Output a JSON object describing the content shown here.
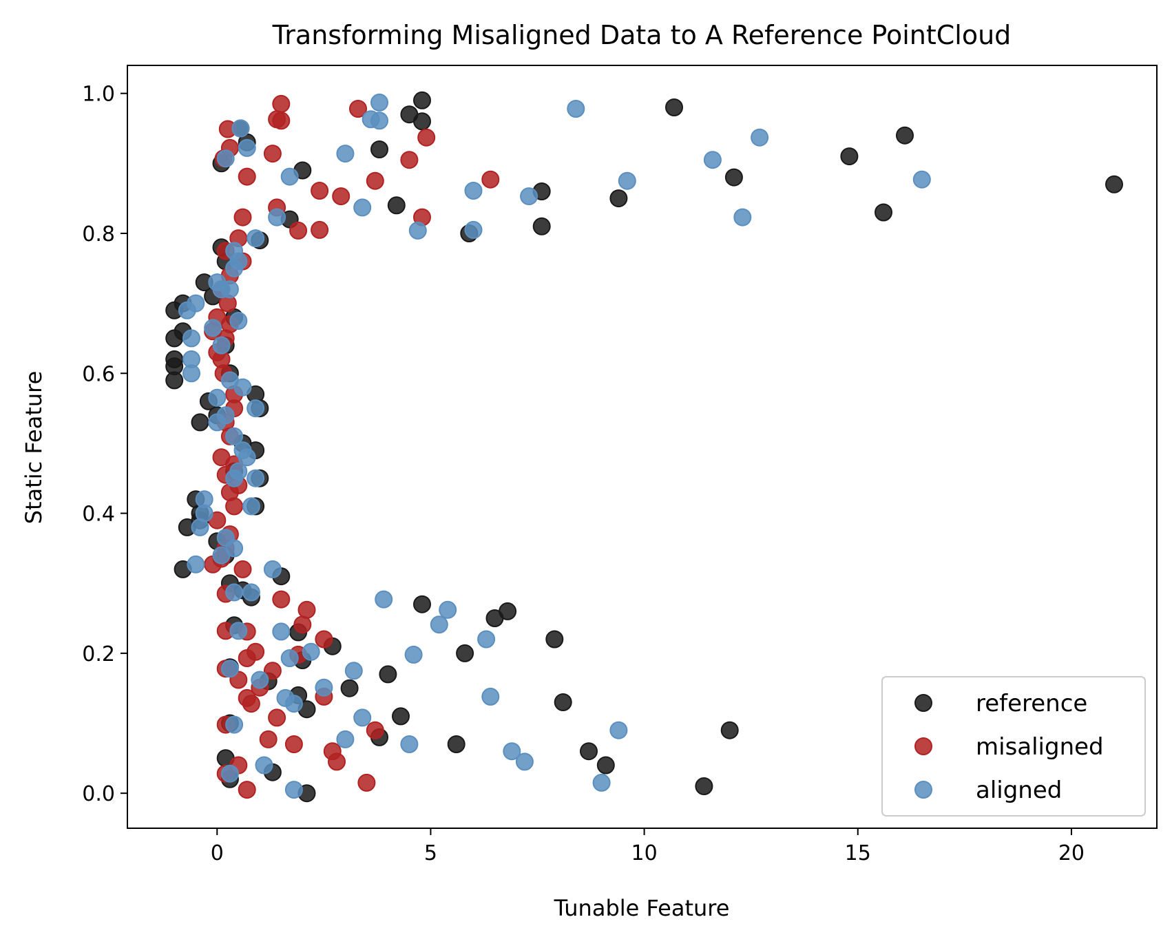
{
  "chart_data": {
    "type": "scatter",
    "title": "Transforming Misaligned Data to A Reference PointCloud",
    "xlabel": "Tunable Feature",
    "ylabel": "Static Feature",
    "xlim": [
      -2.1,
      22.0
    ],
    "ylim": [
      -0.05,
      1.04
    ],
    "xticks": [
      0,
      5,
      10,
      15,
      20
    ],
    "yticks": [
      0.0,
      0.2,
      0.4,
      0.6,
      0.8,
      1.0
    ],
    "xtick_labels": [
      "0",
      "5",
      "10",
      "15",
      "20"
    ],
    "ytick_labels": [
      "0.0",
      "0.2",
      "0.4",
      "0.6",
      "0.8",
      "1.0"
    ],
    "grid": false,
    "legend_position": "lower-right",
    "series": [
      {
        "name": "reference",
        "color": "#1a1a1a",
        "points": [
          [
            4.8,
            0.99
          ],
          [
            4.5,
            0.97
          ],
          [
            4.8,
            0.96
          ],
          [
            3.8,
            0.92
          ],
          [
            10.7,
            0.98
          ],
          [
            16.1,
            0.94
          ],
          [
            14.8,
            0.91
          ],
          [
            12.1,
            0.88
          ],
          [
            21.0,
            0.87
          ],
          [
            9.4,
            0.85
          ],
          [
            15.6,
            0.83
          ],
          [
            7.6,
            0.86
          ],
          [
            4.2,
            0.84
          ],
          [
            7.6,
            0.81
          ],
          [
            5.9,
            0.8
          ],
          [
            0.55,
            0.95
          ],
          [
            0.7,
            0.93
          ],
          [
            2.0,
            0.89
          ],
          [
            0.1,
            0.9
          ],
          [
            1.7,
            0.82
          ],
          [
            1.0,
            0.79
          ],
          [
            0.1,
            0.78
          ],
          [
            0.2,
            0.76
          ],
          [
            -0.3,
            0.73
          ],
          [
            -0.1,
            0.71
          ],
          [
            -1.0,
            0.69
          ],
          [
            -0.8,
            0.7
          ],
          [
            -1.0,
            0.65
          ],
          [
            -0.8,
            0.66
          ],
          [
            -1.0,
            0.62
          ],
          [
            -1.0,
            0.61
          ],
          [
            -1.0,
            0.59
          ],
          [
            0.3,
            0.6
          ],
          [
            0.4,
            0.68
          ],
          [
            0.2,
            0.64
          ],
          [
            0.9,
            0.57
          ],
          [
            1.0,
            0.55
          ],
          [
            -0.2,
            0.56
          ],
          [
            -0.4,
            0.53
          ],
          [
            0.0,
            0.54
          ],
          [
            0.6,
            0.5
          ],
          [
            0.9,
            0.49
          ],
          [
            0.4,
            0.46
          ],
          [
            1.0,
            0.45
          ],
          [
            0.9,
            0.41
          ],
          [
            -0.5,
            0.42
          ],
          [
            -0.4,
            0.4
          ],
          [
            -0.7,
            0.38
          ],
          [
            -0.4,
            0.39
          ],
          [
            0.0,
            0.36
          ],
          [
            -0.8,
            0.32
          ],
          [
            0.2,
            0.34
          ],
          [
            0.3,
            0.3
          ],
          [
            1.5,
            0.31
          ],
          [
            0.8,
            0.28
          ],
          [
            0.6,
            0.29
          ],
          [
            4.8,
            0.27
          ],
          [
            6.8,
            0.26
          ],
          [
            6.5,
            0.25
          ],
          [
            7.9,
            0.22
          ],
          [
            5.8,
            0.2
          ],
          [
            0.4,
            0.24
          ],
          [
            1.9,
            0.23
          ],
          [
            2.7,
            0.21
          ],
          [
            2.0,
            0.19
          ],
          [
            0.3,
            0.18
          ],
          [
            4.0,
            0.17
          ],
          [
            1.2,
            0.16
          ],
          [
            3.1,
            0.15
          ],
          [
            1.9,
            0.14
          ],
          [
            8.1,
            0.13
          ],
          [
            2.1,
            0.12
          ],
          [
            4.3,
            0.11
          ],
          [
            12.0,
            0.09
          ],
          [
            0.3,
            0.1
          ],
          [
            3.8,
            0.08
          ],
          [
            5.6,
            0.07
          ],
          [
            8.7,
            0.06
          ],
          [
            9.1,
            0.04
          ],
          [
            0.2,
            0.05
          ],
          [
            1.3,
            0.03
          ],
          [
            0.3,
            0.02
          ],
          [
            11.4,
            0.01
          ],
          [
            2.1,
            0.0
          ]
        ]
      },
      {
        "name": "misaligned",
        "color": "#b22222",
        "points": [
          [
            1.5,
            0.985
          ],
          [
            3.3,
            0.978
          ],
          [
            1.4,
            0.963
          ],
          [
            1.5,
            0.961
          ],
          [
            0.25,
            0.949
          ],
          [
            4.9,
            0.937
          ],
          [
            0.3,
            0.922
          ],
          [
            1.3,
            0.914
          ],
          [
            0.15,
            0.907
          ],
          [
            4.5,
            0.905
          ],
          [
            0.7,
            0.881
          ],
          [
            3.7,
            0.875
          ],
          [
            6.4,
            0.877
          ],
          [
            2.4,
            0.861
          ],
          [
            2.9,
            0.853
          ],
          [
            1.4,
            0.837
          ],
          [
            0.6,
            0.823
          ],
          [
            4.8,
            0.823
          ],
          [
            1.9,
            0.804
          ],
          [
            2.4,
            0.805
          ],
          [
            0.5,
            0.793
          ],
          [
            0.2,
            0.775
          ],
          [
            0.6,
            0.76
          ],
          [
            0.3,
            0.74
          ],
          [
            0.1,
            0.72
          ],
          [
            0.25,
            0.7
          ],
          [
            0.0,
            0.68
          ],
          [
            0.3,
            0.67
          ],
          [
            -0.1,
            0.66
          ],
          [
            0.2,
            0.65
          ],
          [
            0.0,
            0.63
          ],
          [
            0.1,
            0.62
          ],
          [
            0.15,
            0.6
          ],
          [
            0.4,
            0.57
          ],
          [
            0.4,
            0.55
          ],
          [
            0.2,
            0.53
          ],
          [
            0.3,
            0.51
          ],
          [
            0.1,
            0.48
          ],
          [
            0.4,
            0.47
          ],
          [
            0.2,
            0.455
          ],
          [
            0.5,
            0.44
          ],
          [
            0.3,
            0.43
          ],
          [
            0.4,
            0.41
          ],
          [
            0.0,
            0.39
          ],
          [
            0.3,
            0.37
          ],
          [
            0.2,
            0.35
          ],
          [
            0.1,
            0.335
          ],
          [
            -0.1,
            0.327
          ],
          [
            0.6,
            0.32
          ],
          [
            0.2,
            0.285
          ],
          [
            1.5,
            0.277
          ],
          [
            2.1,
            0.262
          ],
          [
            2.0,
            0.241
          ],
          [
            0.2,
            0.232
          ],
          [
            0.7,
            0.231
          ],
          [
            2.5,
            0.22
          ],
          [
            0.9,
            0.202
          ],
          [
            1.9,
            0.198
          ],
          [
            0.7,
            0.193
          ],
          [
            0.2,
            0.178
          ],
          [
            1.3,
            0.175
          ],
          [
            0.5,
            0.162
          ],
          [
            1.0,
            0.151
          ],
          [
            2.5,
            0.138
          ],
          [
            0.7,
            0.136
          ],
          [
            0.8,
            0.128
          ],
          [
            1.4,
            0.108
          ],
          [
            0.2,
            0.098
          ],
          [
            3.7,
            0.09
          ],
          [
            1.2,
            0.077
          ],
          [
            1.8,
            0.07
          ],
          [
            2.7,
            0.06
          ],
          [
            2.8,
            0.045
          ],
          [
            0.5,
            0.04
          ],
          [
            0.2,
            0.028
          ],
          [
            3.5,
            0.015
          ],
          [
            0.7,
            0.005
          ]
        ]
      },
      {
        "name": "aligned",
        "color": "#5b8fbf",
        "points": [
          [
            3.8,
            0.987
          ],
          [
            8.4,
            0.978
          ],
          [
            3.6,
            0.963
          ],
          [
            3.8,
            0.961
          ],
          [
            0.55,
            0.95
          ],
          [
            12.7,
            0.937
          ],
          [
            0.7,
            0.922
          ],
          [
            3.0,
            0.914
          ],
          [
            0.2,
            0.907
          ],
          [
            11.6,
            0.905
          ],
          [
            1.7,
            0.881
          ],
          [
            9.6,
            0.875
          ],
          [
            16.5,
            0.877
          ],
          [
            6.0,
            0.861
          ],
          [
            7.3,
            0.853
          ],
          [
            3.4,
            0.837
          ],
          [
            1.4,
            0.823
          ],
          [
            12.3,
            0.823
          ],
          [
            4.7,
            0.804
          ],
          [
            6.0,
            0.805
          ],
          [
            0.9,
            0.793
          ],
          [
            0.4,
            0.775
          ],
          [
            0.5,
            0.76
          ],
          [
            0.4,
            0.75
          ],
          [
            0.0,
            0.73
          ],
          [
            0.1,
            0.72
          ],
          [
            0.3,
            0.72
          ],
          [
            -0.5,
            0.7
          ],
          [
            -0.7,
            0.69
          ],
          [
            0.5,
            0.675
          ],
          [
            -0.1,
            0.665
          ],
          [
            -0.6,
            0.65
          ],
          [
            0.1,
            0.64
          ],
          [
            -0.6,
            0.62
          ],
          [
            -0.6,
            0.6
          ],
          [
            0.3,
            0.59
          ],
          [
            0.6,
            0.58
          ],
          [
            0.9,
            0.55
          ],
          [
            0.0,
            0.565
          ],
          [
            0.0,
            0.53
          ],
          [
            0.2,
            0.54
          ],
          [
            0.4,
            0.51
          ],
          [
            0.6,
            0.49
          ],
          [
            0.7,
            0.48
          ],
          [
            0.5,
            0.46
          ],
          [
            0.4,
            0.45
          ],
          [
            0.9,
            0.45
          ],
          [
            0.8,
            0.41
          ],
          [
            -0.3,
            0.42
          ],
          [
            -0.3,
            0.4
          ],
          [
            -0.4,
            0.38
          ],
          [
            0.2,
            0.365
          ],
          [
            0.4,
            0.35
          ],
          [
            -0.5,
            0.327
          ],
          [
            0.1,
            0.34
          ],
          [
            1.3,
            0.32
          ],
          [
            0.8,
            0.287
          ],
          [
            0.4,
            0.287
          ],
          [
            3.9,
            0.277
          ],
          [
            5.4,
            0.262
          ],
          [
            5.2,
            0.241
          ],
          [
            0.5,
            0.232
          ],
          [
            1.5,
            0.231
          ],
          [
            6.3,
            0.22
          ],
          [
            2.2,
            0.202
          ],
          [
            4.6,
            0.198
          ],
          [
            1.7,
            0.193
          ],
          [
            0.3,
            0.178
          ],
          [
            3.2,
            0.175
          ],
          [
            1.0,
            0.162
          ],
          [
            2.5,
            0.151
          ],
          [
            6.4,
            0.138
          ],
          [
            1.6,
            0.136
          ],
          [
            1.8,
            0.128
          ],
          [
            3.4,
            0.108
          ],
          [
            0.4,
            0.098
          ],
          [
            9.4,
            0.09
          ],
          [
            3.0,
            0.077
          ],
          [
            4.5,
            0.07
          ],
          [
            6.9,
            0.06
          ],
          [
            7.2,
            0.045
          ],
          [
            1.1,
            0.04
          ],
          [
            0.3,
            0.028
          ],
          [
            9.0,
            0.015
          ],
          [
            1.8,
            0.005
          ]
        ]
      }
    ]
  }
}
